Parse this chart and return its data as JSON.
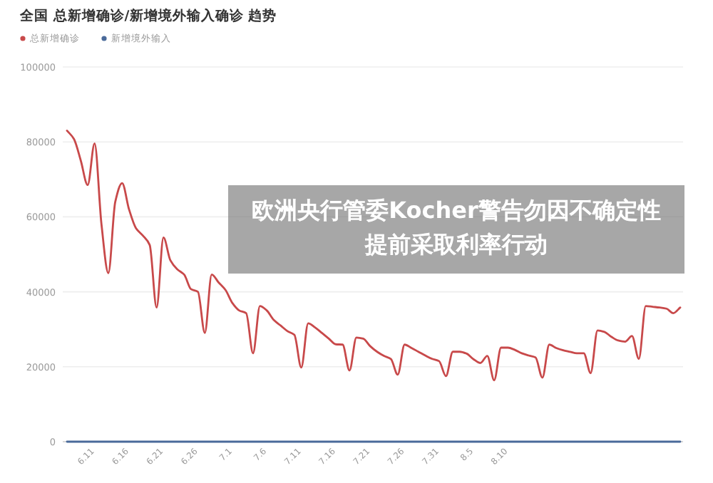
{
  "chart_data": {
    "type": "line",
    "title": "全国 总新增确诊/新增境外输入确诊 趋势",
    "annotations": [
      "欧洲央行管委Kocher警告勿因不确定性提前采取利率行动"
    ],
    "categories": [
      null,
      null,
      null,
      null,
      "6.11",
      null,
      null,
      null,
      null,
      "6.16",
      null,
      null,
      null,
      null,
      "6.21",
      null,
      null,
      null,
      null,
      "6.26",
      null,
      null,
      null,
      null,
      "7.1",
      null,
      null,
      null,
      null,
      "7.6",
      null,
      null,
      null,
      null,
      "7.11",
      null,
      null,
      null,
      null,
      "7.16",
      null,
      null,
      null,
      null,
      "7.21",
      null,
      null,
      null,
      null,
      "7.26",
      null,
      null,
      null,
      null,
      "7.31",
      null,
      null,
      null,
      null,
      "8.5",
      null,
      null,
      null,
      null,
      "8.10",
      null,
      null,
      null,
      null,
      null,
      null,
      null,
      null,
      null,
      null,
      null,
      null,
      null,
      null,
      null,
      null,
      null,
      null,
      null,
      null,
      null,
      null,
      null,
      null,
      null
    ],
    "series": [
      {
        "name": "总新增确诊",
        "color": "#c8494a",
        "values": [
          83000,
          80800,
          75000,
          68500,
          79600,
          58000,
          45000,
          64000,
          69000,
          62000,
          57000,
          55000,
          52500,
          35800,
          54500,
          48400,
          46000,
          44600,
          40700,
          40000,
          29000,
          44600,
          42500,
          40500,
          37000,
          35000,
          34300,
          23600,
          36200,
          35000,
          32500,
          31000,
          29500,
          28500,
          19800,
          31600,
          30500,
          29000,
          27500,
          26000,
          25900,
          19000,
          27800,
          27500,
          25500,
          24000,
          22900,
          22100,
          17900,
          25900,
          25000,
          24000,
          23000,
          22100,
          21500,
          17500,
          24000,
          24000,
          23500,
          22000,
          21000,
          22900,
          16400,
          25100,
          25100,
          24500,
          23600,
          23000,
          22500,
          17100,
          25900,
          25000,
          24400,
          24000,
          23600,
          23600,
          18300,
          29700,
          29300,
          28000,
          27000,
          26700,
          28200,
          22100,
          36200,
          36000,
          35800,
          35500,
          34300,
          35800
        ]
      },
      {
        "name": "新增境外输入",
        "color": "#4a6a9a",
        "values": [
          0,
          0,
          0,
          0,
          0,
          0,
          0,
          0,
          0,
          0,
          0,
          0,
          0,
          0,
          0,
          0,
          0,
          0,
          0,
          0,
          0,
          0,
          0,
          0,
          0,
          0,
          0,
          0,
          0,
          0,
          0,
          0,
          0,
          0,
          0,
          0,
          0,
          0,
          0,
          0,
          0,
          0,
          0,
          0,
          0,
          0,
          0,
          0,
          0,
          0,
          0,
          0,
          0,
          0,
          0,
          0,
          0,
          0,
          0,
          0,
          0,
          0,
          0,
          0,
          0,
          0,
          0,
          0,
          0,
          0,
          0,
          0,
          0,
          0,
          0,
          0,
          0,
          0,
          0,
          0,
          0,
          0,
          0,
          0,
          0,
          0,
          0,
          0,
          0,
          0
        ]
      }
    ],
    "ylim": [
      0,
      100000
    ],
    "yticks": [
      0,
      20000,
      40000,
      60000,
      80000,
      100000
    ],
    "grid": "y",
    "legend": "top left",
    "marker": "none",
    "line_style": "solid"
  }
}
